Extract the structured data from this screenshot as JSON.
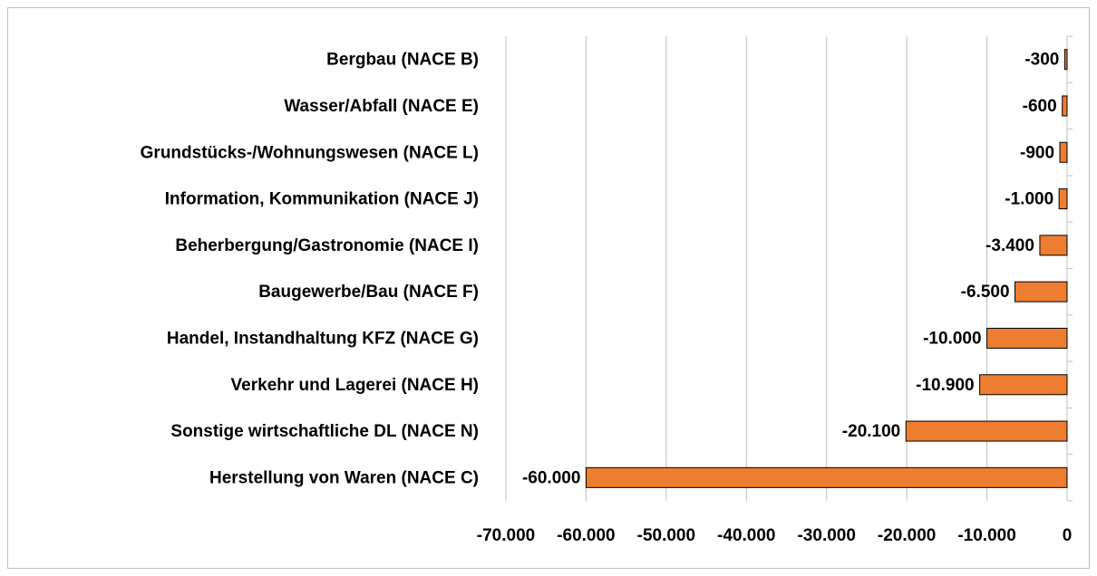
{
  "chart_data": {
    "type": "bar",
    "orientation": "horizontal",
    "categories": [
      "Bergbau (NACE B)",
      "Wasser/Abfall (NACE E)",
      "Grundstücks-/Wohnungswesen (NACE L)",
      "Information, Kommunikation (NACE J)",
      "Beherbergung/Gastronomie (NACE I)",
      "Baugewerbe/Bau (NACE F)",
      "Handel, Instandhaltung KFZ (NACE G)",
      "Verkehr und Lagerei (NACE H)",
      "Sonstige wirtschaftliche DL (NACE N)",
      "Herstellung von Waren (NACE C)"
    ],
    "values": [
      -300,
      -600,
      -900,
      -1000,
      -3400,
      -6500,
      -10000,
      -10900,
      -20100,
      -60000
    ],
    "value_labels": [
      "-300",
      "-600",
      "-900",
      "-1.000",
      "-3.400",
      "-6.500",
      "-10.000",
      "-10.900",
      "-20.100",
      "-60.000"
    ],
    "color": "#ed7d31",
    "xlim": [
      -70000,
      0
    ],
    "xticks": [
      {
        "value": -70000,
        "label": "-70.000"
      },
      {
        "value": -60000,
        "label": "-60.000"
      },
      {
        "value": -50000,
        "label": "-50.000"
      },
      {
        "value": -40000,
        "label": "-40.000"
      },
      {
        "value": -30000,
        "label": "-30.000"
      },
      {
        "value": -20000,
        "label": "-20.000"
      },
      {
        "value": -10000,
        "label": "-10.000"
      },
      0
    ],
    "grid": true
  }
}
